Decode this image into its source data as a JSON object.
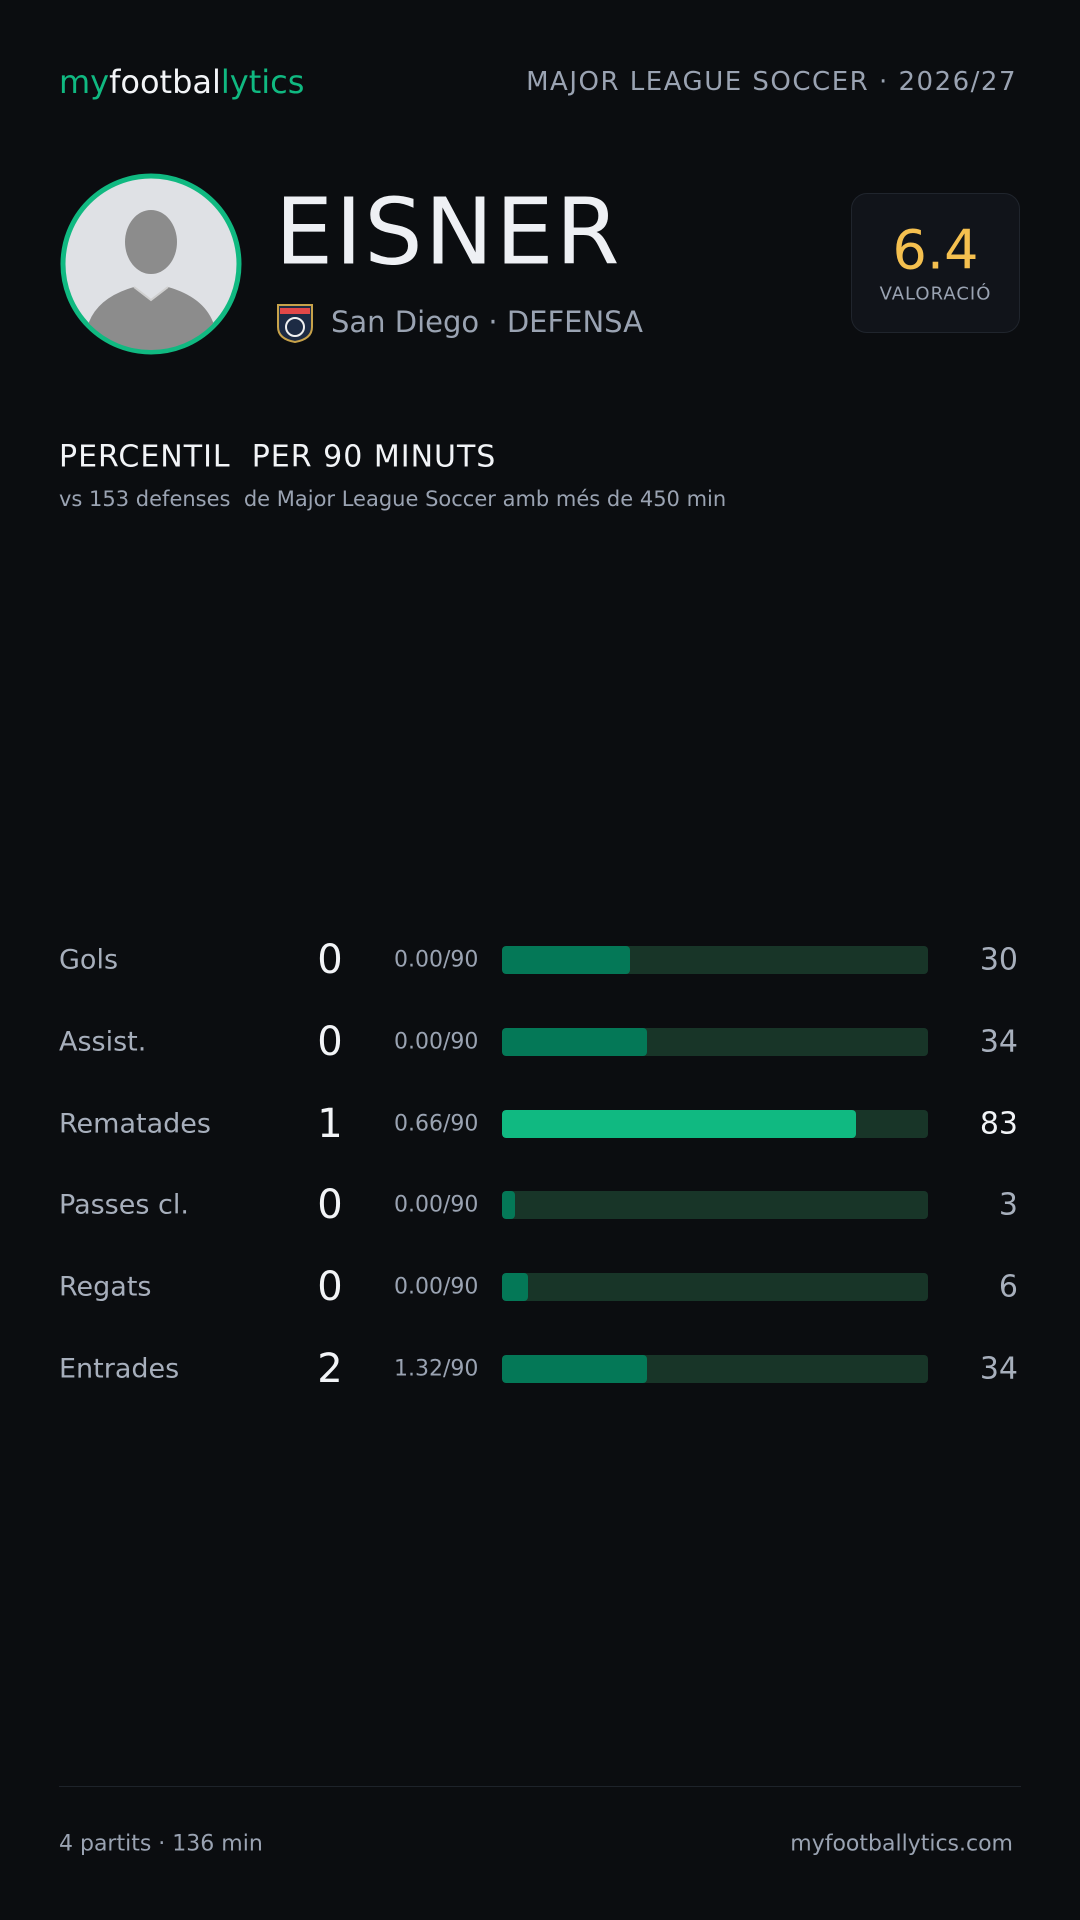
{
  "header": {
    "brand": [
      "my",
      "footbal",
      "lytics"
    ],
    "league": "MAJOR LEAGUE SOCCER · 2026/27"
  },
  "player": {
    "name": "EISNER",
    "team": "San Diego · DEFENSA"
  },
  "rating": {
    "value": "6.4",
    "label": "VALORACIÓ"
  },
  "section": {
    "title": "PERCENTIL  PER 90 MINUTS",
    "subtitle": "vs 153 defenses  de Major League Soccer amb més de 450 min"
  },
  "stats": {
    "xlim": [
      0,
      100
    ],
    "rows": [
      {
        "label": "Gols",
        "total": "0",
        "per90": "0.00/90",
        "percentile": 30,
        "color": "#047857"
      },
      {
        "label": "Assist.",
        "total": "0",
        "per90": "0.00/90",
        "percentile": 34,
        "color": "#047857"
      },
      {
        "label": "Rematades",
        "total": "1",
        "per90": "0.66/90",
        "percentile": 83,
        "color": "#10b981"
      },
      {
        "label": "Passes cl.",
        "total": "0",
        "per90": "0.00/90",
        "percentile": 3,
        "color": "#047857"
      },
      {
        "label": "Regats",
        "total": "0",
        "per90": "0.00/90",
        "percentile": 6,
        "color": "#047857"
      },
      {
        "label": "Entrades",
        "total": "2",
        "per90": "1.32/90",
        "percentile": 34,
        "color": "#047857"
      }
    ]
  },
  "footer": {
    "left": "4 partits · 136 min",
    "right": "myfootballytics.com"
  }
}
